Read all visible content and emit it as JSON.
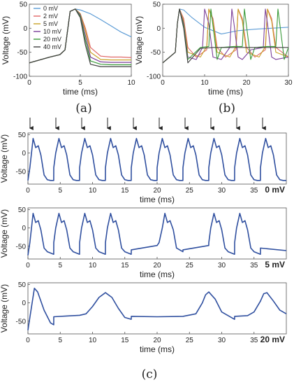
{
  "chart_data": [
    {
      "id": "a",
      "type": "line",
      "caption": "(a)",
      "xlabel": "time (ms)",
      "ylabel": "Voltage (mV)",
      "xlim": [
        0,
        10
      ],
      "ylim": [
        -100,
        50
      ],
      "xticks": [
        0,
        5,
        10
      ],
      "yticks": [
        -100,
        -50,
        0,
        50
      ],
      "xtick_labels": [
        "0",
        "5",
        "10"
      ],
      "ytick_labels": [
        "-100",
        "-50",
        "0",
        "50"
      ],
      "legend": "top-left",
      "series": [
        {
          "name": "0 mV",
          "color": "#5b9bd5",
          "x": [
            0,
            2,
            3,
            3.5,
            4,
            4.5,
            5,
            6,
            7,
            8,
            9,
            10
          ],
          "y": [
            -72,
            -60,
            -55,
            -45,
            35,
            40,
            38,
            30,
            18,
            5,
            -8,
            -18
          ]
        },
        {
          "name": "2 mV",
          "color": "#e06666",
          "x": [
            0,
            2,
            3,
            3.5,
            4,
            4.5,
            5,
            5.5,
            6,
            7,
            8,
            9,
            10
          ],
          "y": [
            -72,
            -60,
            -55,
            -45,
            35,
            40,
            30,
            0,
            -40,
            -58,
            -60,
            -60,
            -61
          ]
        },
        {
          "name": "5 mV",
          "color": "#c9a227",
          "x": [
            0,
            2,
            3,
            3.5,
            4,
            4.5,
            5,
            5.5,
            6,
            7,
            8,
            9,
            10
          ],
          "y": [
            -72,
            -60,
            -55,
            -45,
            35,
            40,
            30,
            -5,
            -50,
            -65,
            -66,
            -66,
            -66
          ]
        },
        {
          "name": "10 mV",
          "color": "#7b3f99",
          "x": [
            0,
            2,
            3,
            3.5,
            4,
            4.5,
            5,
            5.5,
            6,
            7,
            8,
            9,
            10
          ],
          "y": [
            -72,
            -60,
            -55,
            -45,
            35,
            40,
            28,
            -15,
            -60,
            -70,
            -71,
            -71,
            -71
          ]
        },
        {
          "name": "20 mV",
          "color": "#3a9a3a",
          "x": [
            0,
            2,
            3,
            3.5,
            4,
            4.5,
            5,
            5.5,
            6,
            7,
            8,
            9,
            10
          ],
          "y": [
            -72,
            -60,
            -55,
            -45,
            35,
            40,
            25,
            -25,
            -68,
            -75,
            -76,
            -76,
            -76
          ]
        },
        {
          "name": "40 mV",
          "color": "#404040",
          "x": [
            0,
            2,
            3,
            3.5,
            4,
            4.5,
            5,
            5.5,
            6,
            7,
            8,
            9,
            10
          ],
          "y": [
            -72,
            -60,
            -55,
            -45,
            35,
            40,
            22,
            -35,
            -75,
            -80,
            -80,
            -80,
            -80
          ]
        }
      ]
    },
    {
      "id": "b",
      "type": "line",
      "caption": "(b)",
      "xlabel": "time (ms)",
      "ylabel": "Voltage (mV)",
      "xlim": [
        0,
        30
      ],
      "ylim": [
        -100,
        50
      ],
      "xticks": [
        0,
        10,
        20,
        30
      ],
      "yticks": [
        -100,
        -50,
        0,
        50
      ],
      "xtick_labels": [
        "0",
        "10",
        "20",
        "30"
      ],
      "ytick_labels": [
        "-100",
        "-50",
        "0",
        "50"
      ],
      "series": [
        {
          "name": "0 mV",
          "color": "#5b9bd5",
          "x": [
            0,
            3,
            3.5,
            4,
            5,
            7,
            10,
            14,
            18,
            22,
            26,
            30
          ],
          "y": [
            -72,
            -50,
            10,
            40,
            38,
            22,
            2,
            -12,
            -5,
            -2,
            0,
            2
          ]
        },
        {
          "name": "2 mV",
          "color": "#e06666",
          "x": [
            0,
            3,
            3.5,
            4,
            5,
            6,
            8,
            10.5,
            11,
            12,
            13,
            15,
            17.5,
            18,
            19,
            20,
            22,
            24.5,
            25,
            26,
            27,
            30
          ],
          "y": [
            -72,
            -50,
            10,
            40,
            20,
            -40,
            -60,
            -45,
            40,
            20,
            -40,
            -60,
            -45,
            40,
            20,
            -40,
            -60,
            -45,
            40,
            20,
            -40,
            -60
          ]
        },
        {
          "name": "5 mV",
          "color": "#c9a227",
          "x": [
            0,
            3,
            3.5,
            4,
            5,
            6,
            9,
            10.5,
            11,
            12,
            13,
            16,
            17.5,
            18,
            19,
            20,
            23,
            24.5,
            25,
            26,
            27,
            30
          ],
          "y": [
            -72,
            -50,
            10,
            40,
            15,
            -50,
            -60,
            -38,
            40,
            15,
            -50,
            -60,
            -38,
            40,
            15,
            -50,
            -60,
            -38,
            40,
            15,
            -50,
            -60
          ]
        },
        {
          "name": "10 mV",
          "color": "#7b3f99",
          "x": [
            0,
            3,
            3.5,
            4,
            5,
            6,
            8,
            9.5,
            10,
            11,
            12,
            14,
            16,
            16.5,
            17,
            18,
            19,
            21,
            24,
            24.5,
            25,
            26,
            27,
            30
          ],
          "y": [
            -72,
            -50,
            10,
            40,
            10,
            -60,
            -65,
            -40,
            40,
            10,
            -60,
            -65,
            -40,
            40,
            10,
            -60,
            -65,
            -45,
            -40,
            40,
            10,
            -60,
            -65,
            -60
          ]
        },
        {
          "name": "20 mV",
          "color": "#3a9a3a",
          "x": [
            0,
            3,
            3.5,
            4,
            5,
            6,
            9,
            11,
            11.5,
            12,
            13,
            14,
            17,
            19,
            19.5,
            20,
            21,
            22,
            25,
            27,
            27.5,
            28,
            29,
            30
          ],
          "y": [
            -72,
            -50,
            10,
            40,
            5,
            -65,
            -40,
            -38,
            40,
            5,
            -65,
            -40,
            -38,
            -38,
            40,
            5,
            -65,
            -40,
            -38,
            -38,
            40,
            5,
            -65,
            -40
          ]
        },
        {
          "name": "40 mV",
          "color": "#404040",
          "x": [
            0,
            3,
            3.5,
            4,
            5,
            6,
            9,
            12,
            14,
            18,
            22,
            26,
            30
          ],
          "y": [
            -72,
            -50,
            10,
            40,
            0,
            -72,
            -42,
            -40,
            -40,
            -40,
            -40,
            -40,
            -40
          ]
        }
      ]
    },
    {
      "id": "c1",
      "type": "line",
      "annotation": "0 mV",
      "xlabel": "time (ms)",
      "ylabel": "Voltage (mV)",
      "xlim": [
        0,
        40
      ],
      "ylim": [
        -85,
        55
      ],
      "xticks": [
        0,
        5,
        10,
        15,
        20,
        25,
        30,
        35
      ],
      "yticks": [
        -50,
        0,
        50
      ],
      "xtick_labels": [
        "0",
        "5",
        "10",
        "15",
        "20",
        "25",
        "30",
        "35"
      ],
      "ytick_labels": [
        "-50",
        "0",
        "50"
      ],
      "stimulus_times": [
        0,
        4,
        8,
        12,
        16,
        20,
        24,
        28,
        32,
        36
      ],
      "series": [
        {
          "color": "#2f4f9f",
          "x": [
            0,
            0.3,
            0.8,
            1.2,
            1.6,
            2,
            2.5,
            3,
            3.5,
            3.99,
            4,
            4.3,
            4.8,
            5.2,
            5.6,
            6,
            6.5,
            7,
            7.5,
            7.99,
            8,
            8.3,
            8.8,
            9.2,
            9.6,
            10,
            10.5,
            11,
            11.5,
            11.99,
            12,
            12.3,
            12.8,
            13.2,
            13.6,
            14,
            14.5,
            15,
            15.5,
            15.99,
            16,
            16.3,
            16.8,
            17.2,
            17.6,
            18,
            18.5,
            19,
            19.5,
            19.99,
            20,
            20.3,
            20.8,
            21.2,
            21.6,
            22,
            22.5,
            23,
            23.5,
            23.99,
            24,
            24.3,
            24.8,
            25.2,
            25.6,
            26,
            26.5,
            27,
            27.5,
            27.99,
            28,
            28.3,
            28.8,
            29.2,
            29.6,
            30,
            30.5,
            31,
            31.5,
            31.99,
            32,
            32.3,
            32.8,
            33.2,
            33.6,
            34,
            34.5,
            35,
            35.5,
            35.99,
            36,
            36.3,
            36.8,
            37.2,
            37.6,
            38,
            38.5,
            39,
            39.5,
            40
          ],
          "y": [
            -75,
            -40,
            40,
            15,
            20,
            -5,
            -60,
            -73,
            -75,
            -75,
            -40,
            0,
            40,
            15,
            20,
            -5,
            -60,
            -73,
            -75,
            -75,
            -40,
            0,
            40,
            15,
            20,
            -5,
            -60,
            -73,
            -75,
            -75,
            -40,
            0,
            40,
            15,
            20,
            -5,
            -60,
            -73,
            -75,
            -75,
            -40,
            0,
            40,
            15,
            20,
            -5,
            -60,
            -73,
            -75,
            -75,
            -40,
            0,
            40,
            15,
            20,
            -5,
            -60,
            -73,
            -75,
            -75,
            -40,
            0,
            40,
            15,
            20,
            -5,
            -60,
            -73,
            -75,
            -75,
            -40,
            0,
            40,
            15,
            20,
            -5,
            -60,
            -73,
            -75,
            -75,
            -40,
            0,
            40,
            15,
            20,
            -5,
            -60,
            -73,
            -75,
            -75,
            -40,
            0,
            40,
            15,
            20,
            -5,
            -60,
            -73,
            -75,
            -75
          ]
        }
      ]
    },
    {
      "id": "c2",
      "type": "line",
      "annotation": "5 mV",
      "xlabel": "time (ms)",
      "ylabel": "Voltage (mV)",
      "xlim": [
        0,
        40
      ],
      "ylim": [
        -85,
        55
      ],
      "xticks": [
        0,
        5,
        10,
        15,
        20,
        25,
        30,
        35
      ],
      "yticks": [
        -50,
        0,
        50
      ],
      "xtick_labels": [
        "0",
        "5",
        "10",
        "15",
        "20",
        "25",
        "30",
        "35"
      ],
      "ytick_labels": [
        "-50",
        "0",
        "50"
      ],
      "series": [
        {
          "color": "#2f4f9f",
          "x": [
            0,
            0.3,
            0.8,
            1.2,
            1.6,
            2,
            2.5,
            3,
            3.99,
            4,
            4.3,
            4.8,
            5.2,
            5.6,
            6,
            6.5,
            7,
            7.99,
            8,
            8.3,
            8.8,
            9.2,
            9.6,
            10,
            10.5,
            11,
            11.99,
            12,
            12.3,
            12.8,
            13.2,
            13.6,
            14,
            14.5,
            15,
            15.99,
            16,
            20,
            20.3,
            20.8,
            21.2,
            21.6,
            22,
            22.5,
            23,
            23.99,
            24,
            27.99,
            28,
            28.3,
            28.8,
            29.2,
            29.6,
            30,
            30.5,
            31,
            31.99,
            32,
            32.3,
            32.8,
            33.2,
            33.6,
            34,
            34.5,
            35,
            35.99,
            36,
            40
          ],
          "y": [
            -75,
            -40,
            40,
            15,
            20,
            -5,
            -55,
            -65,
            -72,
            -40,
            0,
            40,
            15,
            20,
            -5,
            -55,
            -65,
            -72,
            -40,
            0,
            40,
            15,
            20,
            -5,
            -55,
            -65,
            -72,
            -40,
            0,
            40,
            15,
            20,
            -5,
            -55,
            -65,
            -72,
            -60,
            -48,
            -40,
            0,
            40,
            15,
            20,
            -5,
            -55,
            -65,
            -60,
            -48,
            -40,
            0,
            40,
            15,
            20,
            -5,
            -55,
            -65,
            -72,
            -40,
            0,
            40,
            15,
            20,
            -5,
            -55,
            -65,
            -72,
            -55,
            -62
          ]
        }
      ]
    },
    {
      "id": "c3",
      "type": "line",
      "annotation": "20 mV",
      "xlabel": "time (ms)",
      "ylabel": "Voltage (mV)",
      "xlim": [
        0,
        40
      ],
      "ylim": [
        -85,
        55
      ],
      "xticks": [
        0,
        5,
        10,
        15,
        20,
        25,
        30,
        35
      ],
      "yticks": [
        -50,
        0,
        50
      ],
      "xtick_labels": [
        "0",
        "5",
        "10",
        "15",
        "20",
        "25",
        "30",
        "35"
      ],
      "ytick_labels": [
        "-50",
        "0",
        "50"
      ],
      "series": [
        {
          "color": "#2f4f9f",
          "x": [
            0,
            0.3,
            1,
            1.5,
            2.5,
            3.5,
            3.99,
            4,
            6,
            8,
            9,
            10,
            11,
            12,
            13,
            14,
            15,
            15.99,
            16,
            20,
            24,
            26,
            27,
            27.5,
            28,
            29,
            30,
            31.99,
            32,
            34,
            35,
            36,
            36.5,
            37,
            38,
            39,
            40
          ],
          "y": [
            -75,
            -40,
            40,
            30,
            -20,
            -55,
            -60,
            -38,
            -36,
            -34,
            -30,
            -10,
            15,
            28,
            15,
            -15,
            -40,
            -45,
            -37,
            -38,
            -37,
            -30,
            0,
            22,
            30,
            10,
            -25,
            -45,
            -37,
            -35,
            -25,
            5,
            25,
            28,
            5,
            -20,
            -30
          ]
        }
      ]
    }
  ],
  "panel_c_caption": "(c)"
}
